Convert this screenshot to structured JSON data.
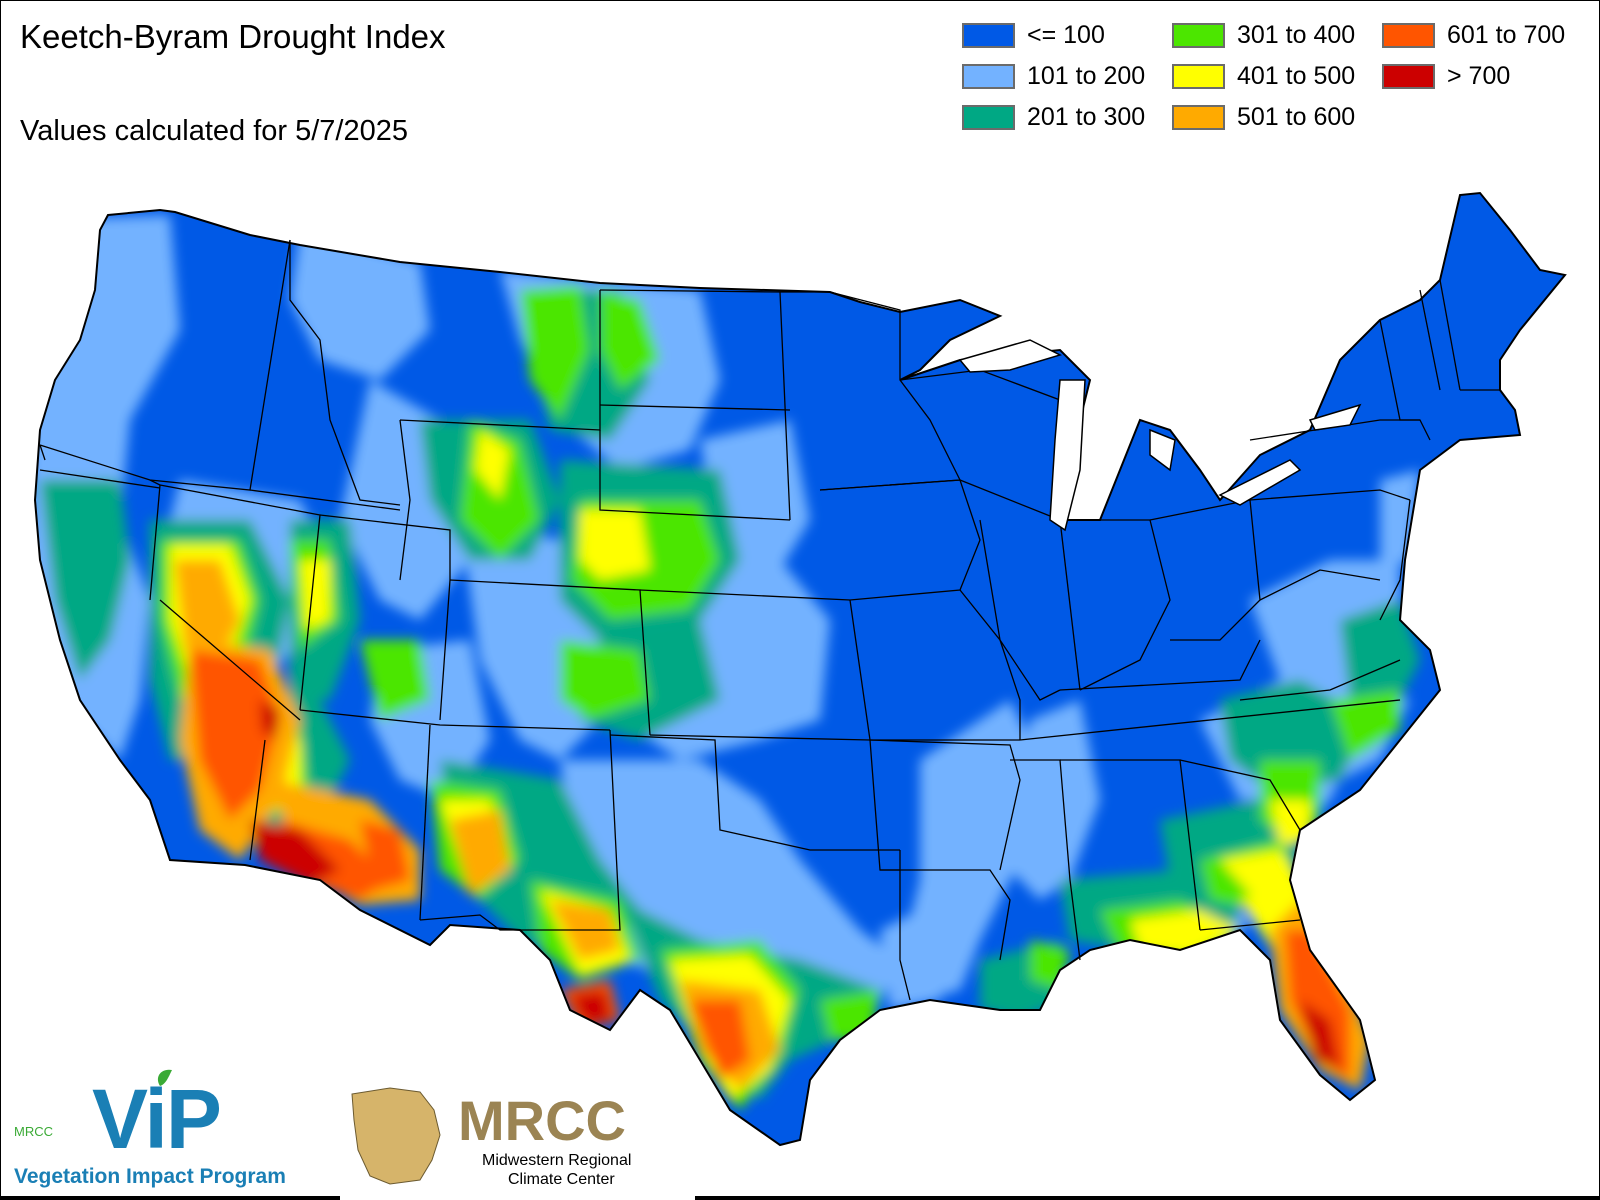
{
  "title": "Keetch-Byram Drought Index",
  "subtitle": "Values calculated for 5/7/2025",
  "legend": {
    "items": [
      {
        "label": "<= 100",
        "color": "#0059e6"
      },
      {
        "label": "101 to 200",
        "color": "#73b2ff"
      },
      {
        "label": "201 to 300",
        "color": "#00a884"
      },
      {
        "label": "301 to 400",
        "color": "#4ce600"
      },
      {
        "label": "401 to 500",
        "color": "#ffff00"
      },
      {
        "label": "501 to 600",
        "color": "#ffaa00"
      },
      {
        "label": "601 to 700",
        "color": "#ff5500"
      },
      {
        "label": "> 700",
        "color": "#cc0000"
      }
    ]
  },
  "logos": {
    "vip": {
      "small_text": "MRCC",
      "big_text": "ViP",
      "tagline": "Vegetation Impact Program"
    },
    "mrcc": {
      "big_text": "MRCC",
      "line1": "Midwestern Regional",
      "line2": "Climate Center"
    }
  }
}
